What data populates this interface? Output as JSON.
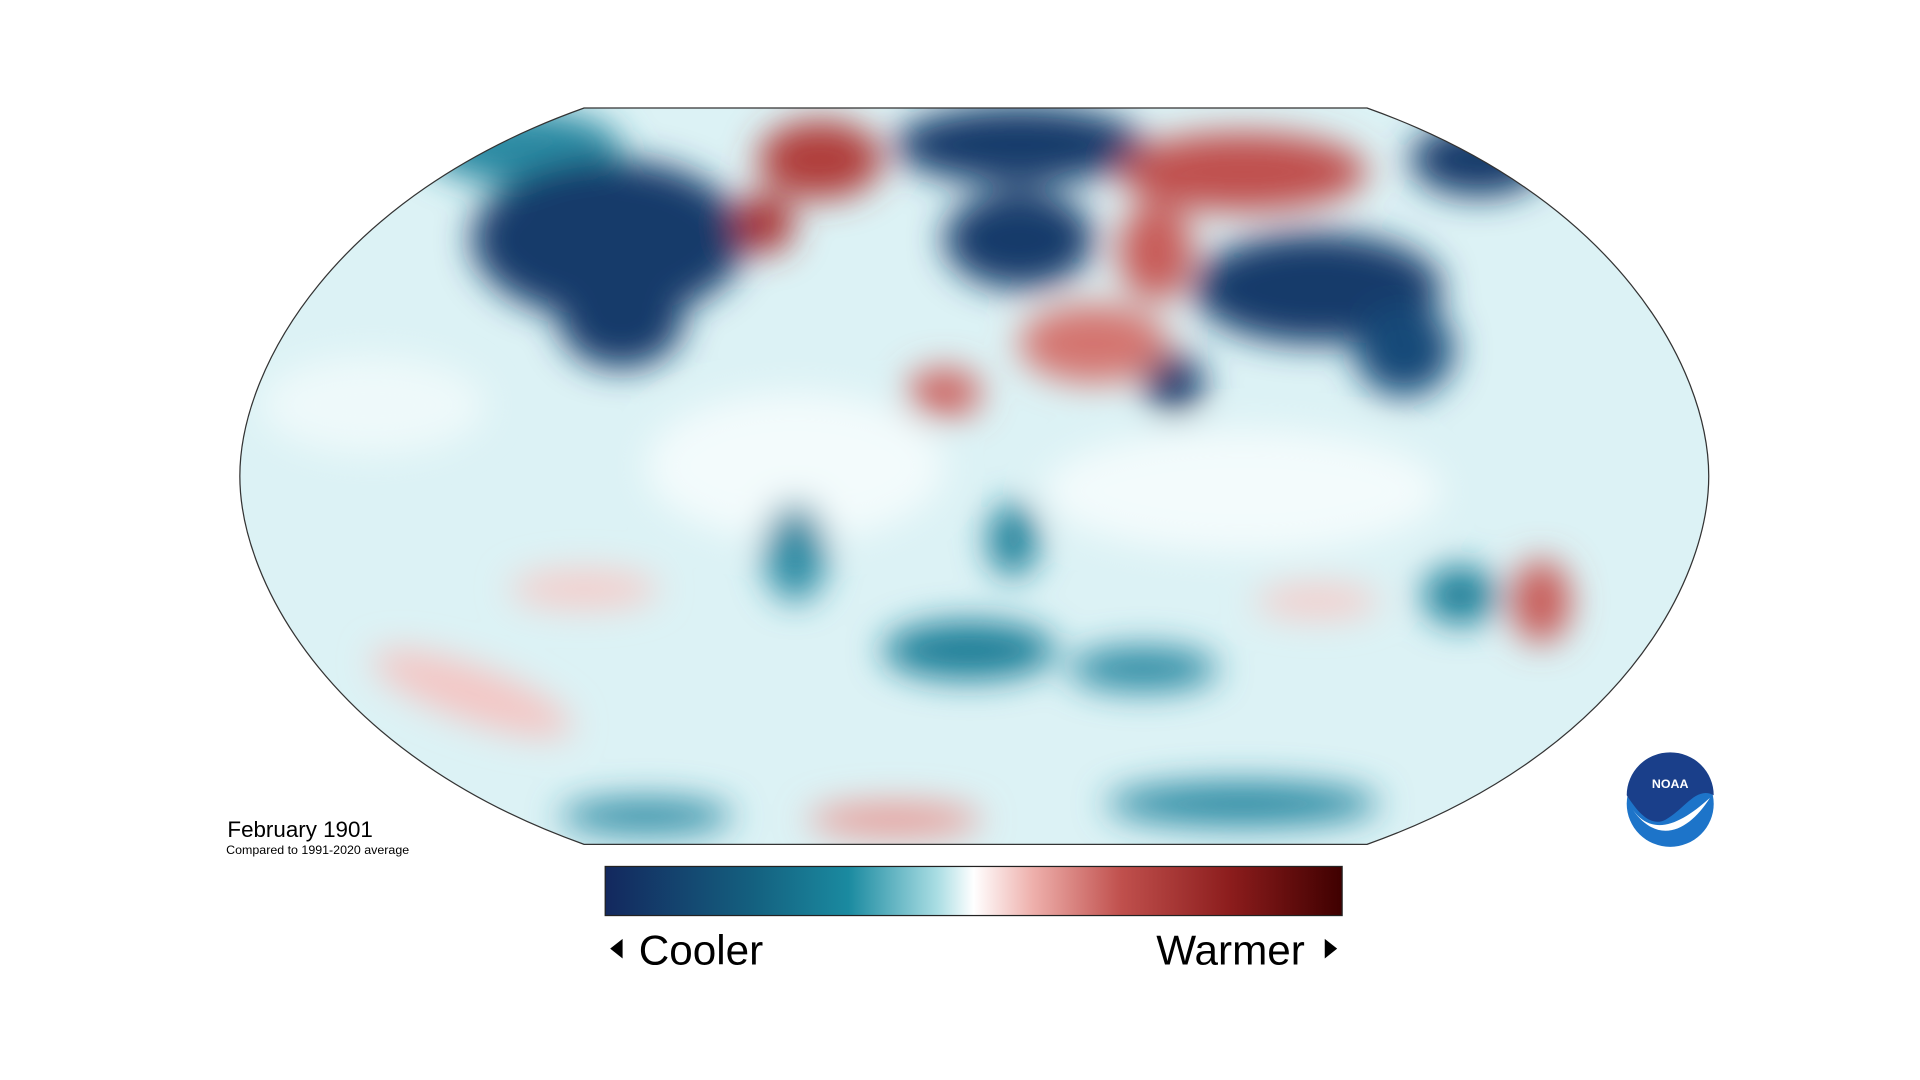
{
  "map": {
    "title": "February 1901",
    "subtitle": "Compared to 1991-2020 average",
    "legend": {
      "low_label": "Cooler",
      "high_label": "Warmer"
    },
    "logo": "NOAA"
  }
}
